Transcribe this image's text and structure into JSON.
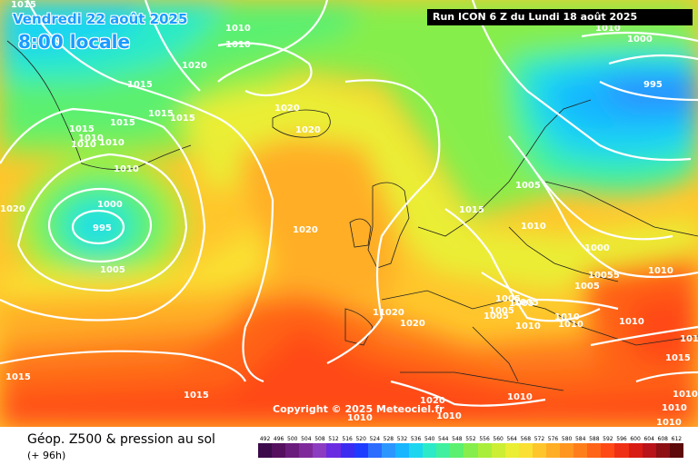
{
  "header": {
    "date": "Vendredi 22 août 2025",
    "time": "8:00 locale",
    "run": "Run ICON 6 Z du Lundi 18 août 2025"
  },
  "copyright": "Copyright © 2025 Meteociel.fr",
  "footer": {
    "title": "Géop. Z500 & pression au sol",
    "subtitle": "(+ 96h)"
  },
  "legend": {
    "values": [
      "492",
      "496",
      "500",
      "504",
      "508",
      "512",
      "516",
      "520",
      "524",
      "528",
      "532",
      "536",
      "540",
      "544",
      "548",
      "552",
      "556",
      "560",
      "564",
      "568",
      "572",
      "576",
      "580",
      "584",
      "588",
      "592",
      "596",
      "600",
      "604",
      "608",
      "612"
    ],
    "colors": [
      "#3c0a4a",
      "#54105e",
      "#6a1c7c",
      "#7e2a9a",
      "#8c3cc0",
      "#6a2ce0",
      "#3c2cf0",
      "#1e3cff",
      "#2c6cff",
      "#2c96ff",
      "#18b6ff",
      "#1cd6f0",
      "#2ceac8",
      "#40f0a0",
      "#5cf070",
      "#86ee4c",
      "#aaee3c",
      "#ccee34",
      "#eaee34",
      "#fae032",
      "#ffc62c",
      "#ffae26",
      "#ff9620",
      "#ff7e1c",
      "#ff6418",
      "#ff4a16",
      "#f03014",
      "#d81c14",
      "#b8141a",
      "#8c1014",
      "#5c0a0a"
    ]
  },
  "map": {
    "isobar_labels": [
      "1015",
      "1010",
      "1010",
      "1020",
      "1015",
      "1015",
      "1015",
      "1015",
      "1015",
      "1010",
      "1010",
      "1010",
      "1010",
      "1020",
      "1020",
      "1020",
      "1000",
      "995",
      "1005",
      "1020",
      "1020",
      "11020",
      "1020",
      "1015",
      "1015",
      "1015",
      "1010",
      "1005",
      "1010",
      "1010",
      "1010",
      "1015",
      "1010",
      "1005",
      "1000",
      "995",
      "1005",
      "1000",
      "1005",
      "10055",
      "1005",
      "1005",
      "1005",
      "1005",
      "1010",
      "1010",
      "1010",
      "1010",
      "1010",
      "1015",
      "1010",
      "1010",
      "1010",
      "1010"
    ]
  }
}
